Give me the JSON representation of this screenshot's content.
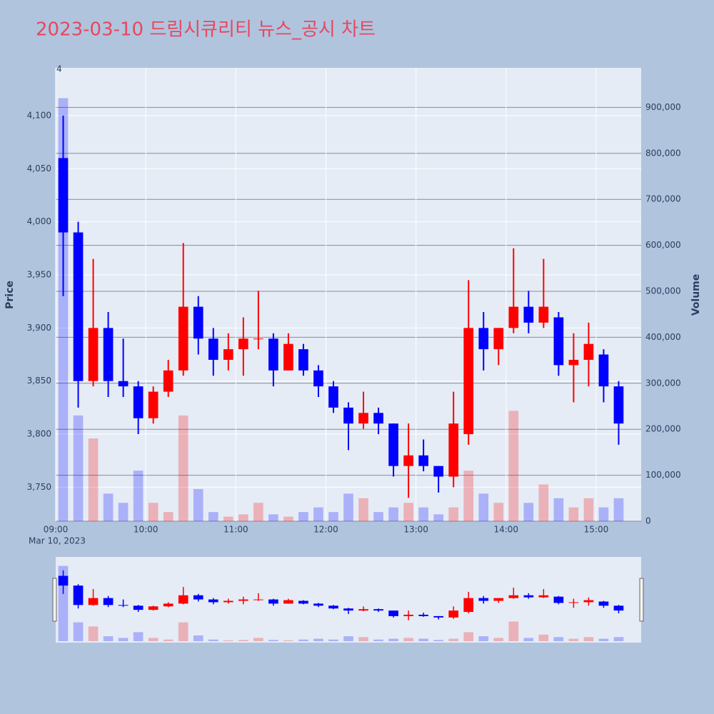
{
  "chart_data": {
    "type": "candlestick",
    "title": "2023-03-10 드림시큐리티 뉴스_공시 차트",
    "annotation": "4",
    "x_title_left": "Price",
    "y2_title": "Volume",
    "x_date_label": "Mar 10, 2023",
    "x": [
      "09:00",
      "09:10",
      "09:20",
      "09:30",
      "09:40",
      "09:50",
      "10:00",
      "10:10",
      "10:20",
      "10:30",
      "10:40",
      "10:50",
      "11:00",
      "11:10",
      "11:20",
      "11:30",
      "11:40",
      "11:50",
      "12:00",
      "12:10",
      "12:20",
      "12:30",
      "12:40",
      "12:50",
      "13:00",
      "13:10",
      "13:20",
      "13:30",
      "13:40",
      "13:50",
      "14:00",
      "14:10",
      "14:20",
      "14:30",
      "14:40",
      "14:50",
      "15:00",
      "15:10"
    ],
    "open": [
      4060,
      3990,
      3850,
      3900,
      3850,
      3845,
      3815,
      3840,
      3860,
      3920,
      3890,
      3870,
      3880,
      3890,
      3890,
      3860,
      3880,
      3860,
      3845,
      3825,
      3810,
      3820,
      3810,
      3770,
      3780,
      3770,
      3760,
      3800,
      3900,
      3880,
      3900,
      3920,
      3905,
      3910,
      3865,
      3870,
      3875,
      3845
    ],
    "high": [
      4100,
      4000,
      3965,
      3915,
      3890,
      3850,
      3845,
      3870,
      3980,
      3930,
      3900,
      3895,
      3910,
      3935,
      3895,
      3895,
      3885,
      3865,
      3850,
      3830,
      3840,
      3825,
      3810,
      3810,
      3795,
      3770,
      3840,
      3945,
      3915,
      3900,
      3975,
      3935,
      3965,
      3915,
      3895,
      3905,
      3880,
      3850
    ],
    "low": [
      3930,
      3825,
      3845,
      3835,
      3835,
      3800,
      3810,
      3835,
      3855,
      3875,
      3855,
      3860,
      3855,
      3880,
      3845,
      3860,
      3855,
      3835,
      3820,
      3785,
      3805,
      3800,
      3760,
      3740,
      3765,
      3745,
      3750,
      3790,
      3860,
      3865,
      3895,
      3895,
      3900,
      3855,
      3830,
      3845,
      3830,
      3790
    ],
    "close": [
      3990,
      3850,
      3900,
      3850,
      3845,
      3815,
      3840,
      3860,
      3920,
      3890,
      3870,
      3880,
      3890,
      3890,
      3860,
      3885,
      3860,
      3845,
      3825,
      3810,
      3820,
      3810,
      3770,
      3780,
      3770,
      3760,
      3810,
      3900,
      3880,
      3900,
      3920,
      3905,
      3920,
      3865,
      3870,
      3885,
      3845,
      3810
    ],
    "increasing_color": "#ff0000",
    "decreasing_color": "#0000ff",
    "series": [
      {
        "name": "Volume",
        "axis": "y2",
        "values": [
          920000,
          230000,
          180000,
          60000,
          40000,
          110000,
          40000,
          20000,
          230000,
          70000,
          20000,
          10000,
          15000,
          40000,
          15000,
          10000,
          20000,
          30000,
          20000,
          60000,
          50000,
          20000,
          30000,
          40000,
          30000,
          15000,
          30000,
          110000,
          60000,
          40000,
          240000,
          40000,
          80000,
          50000,
          30000,
          50000,
          30000,
          50000
        ]
      }
    ],
    "xlim": [
      "09:00",
      "15:30"
    ],
    "xticks": [
      "09:00",
      "10:00",
      "11:00",
      "12:00",
      "13:00",
      "14:00",
      "15:00"
    ],
    "ylim": [
      3718,
      4145
    ],
    "yticks": [
      {
        "value": 3750,
        "label": "3,750"
      },
      {
        "value": 3800,
        "label": "3,800"
      },
      {
        "value": 3850,
        "label": "3,850"
      },
      {
        "value": 3900,
        "label": "3,900"
      },
      {
        "value": 3950,
        "label": "3,950"
      },
      {
        "value": 4000,
        "label": "4,000"
      },
      {
        "value": 4050,
        "label": "4,050"
      },
      {
        "value": 4100,
        "label": "4,100"
      }
    ],
    "y2lim": [
      0,
      986000
    ],
    "y2ticks": [
      0,
      {
        "value": 100000,
        "label": "100,000"
      },
      {
        "value": 200000,
        "label": "200,000"
      },
      {
        "value": 300000,
        "label": "300,000"
      },
      {
        "value": 400000,
        "label": "400,000"
      },
      {
        "value": 500000,
        "label": "500,000"
      },
      {
        "value": 600000,
        "label": "600,000"
      },
      {
        "value": 700000,
        "label": "700,000"
      },
      {
        "value": 800000,
        "label": "800,000"
      },
      {
        "value": 900000,
        "label": "900,000"
      }
    ],
    "grid": true
  }
}
